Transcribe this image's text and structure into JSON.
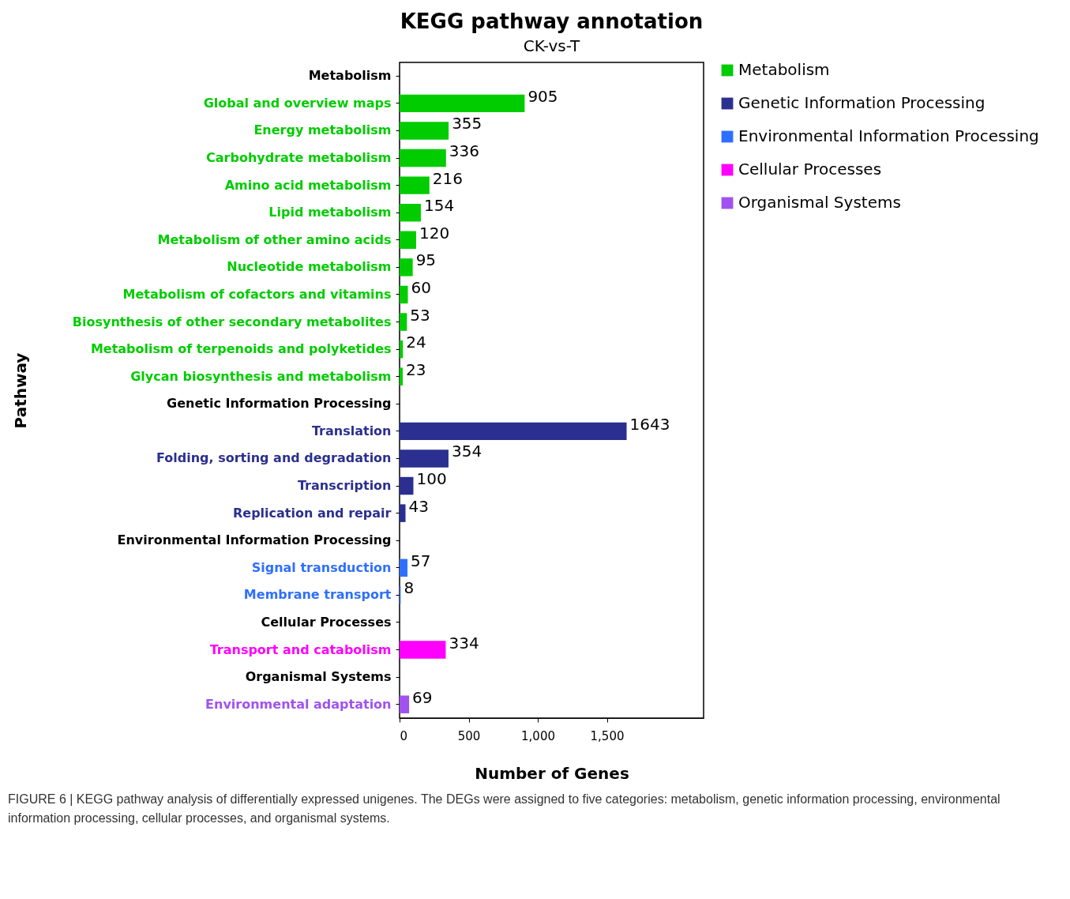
{
  "chart_data": {
    "type": "bar",
    "orientation": "horizontal",
    "title": "KEGG pathway annotation",
    "subtitle": "CK-vs-T",
    "xlabel": "Number of Genes",
    "ylabel": "Pathway",
    "categories": [
      "Metabolism",
      "Global and overview maps",
      "Energy metabolism",
      "Carbohydrate metabolism",
      "Amino acid metabolism",
      "Lipid metabolism",
      "Metabolism of other amino acids",
      "Nucleotide metabolism",
      "Metabolism of cofactors and vitamins",
      "Biosynthesis of other secondary metabolites",
      "Metabolism of terpenoids and polyketides",
      "Glycan biosynthesis and metabolism",
      "Genetic Information Processing",
      "Translation",
      "Folding, sorting and degradation",
      "Transcription",
      "Replication and repair",
      "Environmental Information Processing",
      "Signal transduction",
      "Membrane transport",
      "Cellular Processes",
      "Transport and catabolism",
      "Organismal Systems",
      "Environmental adaptation"
    ],
    "series": [
      {
        "name": "Metabolism",
        "color": "#00cc00",
        "values": [
          null,
          905,
          355,
          336,
          216,
          154,
          120,
          95,
          60,
          53,
          24,
          23,
          null,
          null,
          null,
          null,
          null,
          null,
          null,
          null,
          null,
          null,
          null,
          null
        ]
      },
      {
        "name": "Genetic Information Processing",
        "color": "#2b2f8f",
        "values": [
          null,
          null,
          null,
          null,
          null,
          null,
          null,
          null,
          null,
          null,
          null,
          null,
          null,
          1643,
          354,
          100,
          43,
          null,
          null,
          null,
          null,
          null,
          null,
          null
        ]
      },
      {
        "name": "Environmental Information Processing",
        "color": "#2f6fff",
        "values": [
          null,
          null,
          null,
          null,
          null,
          null,
          null,
          null,
          null,
          null,
          null,
          null,
          null,
          null,
          null,
          null,
          null,
          null,
          57,
          8,
          null,
          null,
          null,
          null
        ]
      },
      {
        "name": "Cellular Processes",
        "color": "#ff00ff",
        "values": [
          null,
          null,
          null,
          null,
          null,
          null,
          null,
          null,
          null,
          null,
          null,
          null,
          null,
          null,
          null,
          null,
          null,
          null,
          null,
          null,
          null,
          334,
          null,
          null
        ]
      },
      {
        "name": "Organismal Systems",
        "color": "#a052f0",
        "values": [
          null,
          null,
          null,
          null,
          null,
          null,
          null,
          null,
          null,
          null,
          null,
          null,
          null,
          null,
          null,
          null,
          null,
          null,
          null,
          null,
          null,
          null,
          null,
          69
        ]
      }
    ],
    "xlim": [
      0,
      2200
    ],
    "xticks": [
      0,
      500,
      {
        "value": 1000,
        "label": "1,000"
      },
      {
        "value": 1500,
        "label": "1,500"
      }
    ],
    "data_labels": true,
    "grid": false,
    "legend": "top right",
    "annotations": [
      "FIGURE 6 | KEGG pathway analysis of differentially expressed unigenes. The DEGs were assigned to five categories: metabolism, genetic information processing, environmental information processing, cellular processes, and organismal systems."
    ]
  }
}
